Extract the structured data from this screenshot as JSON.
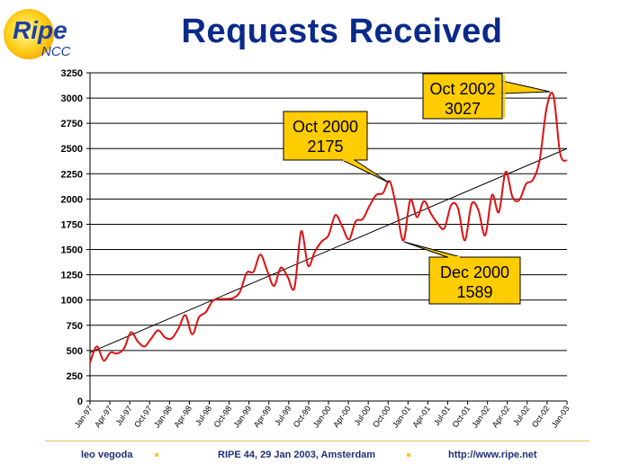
{
  "header": {
    "title": "Requests Received",
    "logo_text": "Ripe",
    "logo_subtext": "NCC"
  },
  "footer": {
    "author": "leo vegoda",
    "event": "RIPE 44, 29 Jan 2003, Amsterdam",
    "url": "http://www.ripe.net"
  },
  "colors": {
    "line": "#e01010",
    "trend": "#000000",
    "callout_fill": "#ffcc00",
    "title": "#0a2a8a"
  },
  "chart_data": {
    "type": "line",
    "title": "Requests Received",
    "xlabel": "",
    "ylabel": "",
    "ylim": [
      0,
      3250
    ],
    "yticks": [
      0,
      250,
      500,
      750,
      1000,
      1250,
      1500,
      1750,
      2000,
      2250,
      2500,
      2750,
      3000,
      3250
    ],
    "grid": "horizontal",
    "xtick_labels": [
      "Jan-97",
      "Apr-97",
      "Jul-97",
      "Oct-97",
      "Jan-98",
      "Apr-98",
      "Jul-98",
      "Oct-98",
      "Jan-99",
      "Apr-99",
      "Jul-99",
      "Oct-99",
      "Jan-00",
      "Apr-00",
      "Jul-00",
      "Oct-00",
      "Jan-01",
      "Apr-01",
      "Jul-01",
      "Oct-01",
      "Jan-02",
      "Apr-02",
      "Jul-02",
      "Oct-02",
      "Jan-03"
    ],
    "series": [
      {
        "values": [
          380,
          540,
          400,
          480,
          470,
          520,
          680,
          590,
          540,
          620,
          700,
          630,
          620,
          720,
          850,
          660,
          830,
          880,
          990,
          1010,
          1010,
          1020,
          1080,
          1270,
          1280,
          1450,
          1290,
          1140,
          1320,
          1230,
          1120,
          1680,
          1340,
          1480,
          1580,
          1640,
          1840,
          1730,
          1600,
          1780,
          1800,
          1930,
          2040,
          2060,
          2175,
          1900,
          1589,
          1990,
          1820,
          1980,
          1860,
          1760,
          1710,
          1940,
          1910,
          1590,
          1950,
          1890,
          1640,
          2040,
          1870,
          2270,
          2020,
          1990,
          2150,
          2190,
          2390,
          2900,
          3027,
          2450,
          2380
        ],
        "trend_start": 480,
        "trend_end": 2500
      }
    ],
    "annotations": [
      {
        "label": "Oct 2000",
        "value": "2175"
      },
      {
        "label": "Oct 2002",
        "value": "3027"
      },
      {
        "label": "Dec 2000",
        "value": "1589"
      }
    ]
  }
}
